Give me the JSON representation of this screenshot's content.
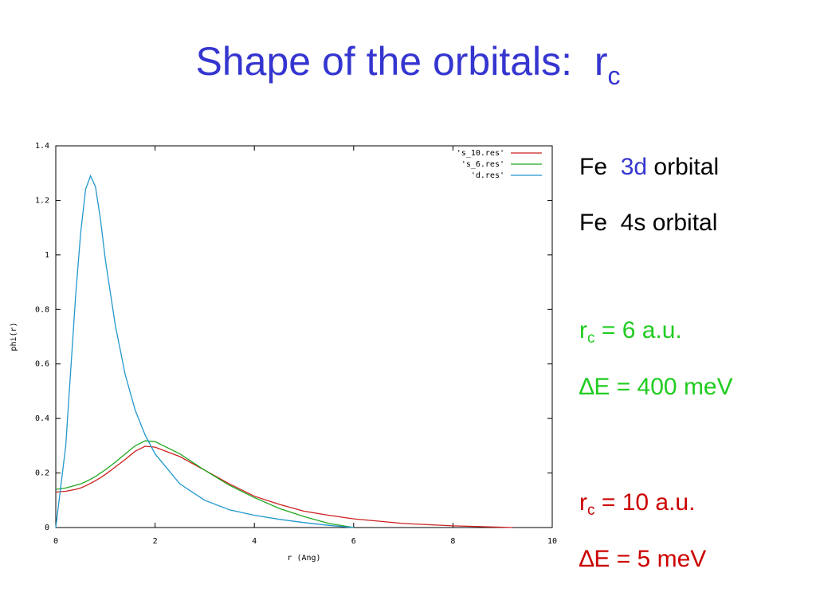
{
  "title": {
    "text": "Shape of the orbitals:  r",
    "sub": "c"
  },
  "chart_data": {
    "type": "line",
    "xlabel": "r (Ang)",
    "ylabel": "phi(r)",
    "x": [
      0,
      0.2,
      0.4,
      0.5,
      0.6,
      0.7,
      0.8,
      0.9,
      1.0,
      1.2,
      1.4,
      1.6,
      1.8,
      2.0,
      2.5,
      3,
      3.5,
      4,
      4.5,
      5,
      5.5,
      6,
      7,
      8,
      9.2
    ],
    "series": [
      {
        "name": "'s_10.res'",
        "color": "#cc2020",
        "values": [
          0.13,
          0.133,
          0.14,
          0.145,
          0.153,
          0.162,
          0.172,
          0.183,
          0.195,
          0.222,
          0.25,
          0.28,
          0.298,
          0.295,
          0.26,
          0.21,
          0.16,
          0.115,
          0.085,
          0.06,
          0.045,
          0.032,
          0.015,
          0.006,
          0
        ]
      },
      {
        "name": "'s_6.res'",
        "color": "#20a820",
        "values": [
          0.14,
          0.145,
          0.155,
          0.16,
          0.168,
          0.177,
          0.187,
          0.2,
          0.212,
          0.24,
          0.27,
          0.3,
          0.318,
          0.315,
          0.27,
          0.21,
          0.155,
          0.11,
          0.07,
          0.04,
          0.015,
          0,
          null,
          null,
          null
        ]
      },
      {
        "name": "'d.res'",
        "color": "#2298cc",
        "values": [
          0,
          0.3,
          0.85,
          1.08,
          1.24,
          1.29,
          1.25,
          1.13,
          0.98,
          0.74,
          0.56,
          0.43,
          0.34,
          0.27,
          0.16,
          0.1,
          0.065,
          0.045,
          0.03,
          0.018,
          0.008,
          0,
          null,
          null,
          null
        ]
      }
    ],
    "xlim": [
      0,
      10
    ],
    "xticks": [
      0,
      2,
      4,
      6,
      8,
      10
    ],
    "ylim": [
      0,
      1.4
    ],
    "yticks": [
      0,
      0.2,
      0.4,
      0.6,
      0.8,
      1,
      1.2,
      1.4
    ],
    "legend": "upper right"
  },
  "notes": {
    "fe3d": [
      "Fe  ",
      "3d",
      " orbital"
    ],
    "fe4s": "Fe  4s orbital",
    "rc6": [
      "r",
      "c",
      " = 6 a.u."
    ],
    "de400": "∆E = 400 meV",
    "rc10": [
      "r",
      "c",
      " = 10 a.u."
    ],
    "de5": "∆E = 5 meV"
  }
}
